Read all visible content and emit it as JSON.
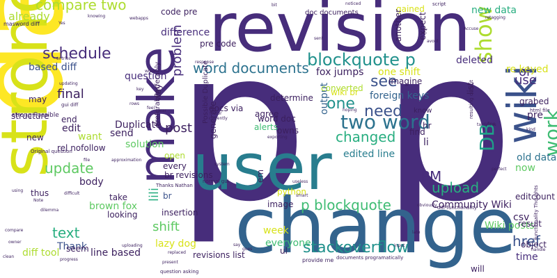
{
  "palette": {
    "background": "#ffffff",
    "purple": "#472d7b",
    "deep_purple": "#3b1f5e",
    "violet": "#5b3c91",
    "indigo": "#3b528b",
    "blue": "#33638d",
    "teal": "#2c728e",
    "teal_blue": "#287d8e",
    "teal_green": "#21918c",
    "green_teal": "#1fa088",
    "sea_green": "#28ae80",
    "green": "#3fbc73",
    "lime_green": "#5ec962",
    "light_green": "#84d44b",
    "yellow_green": "#addc30",
    "yellow": "#d8e219",
    "bright_yellow": "#fde725"
  },
  "words": [
    {
      "text": "p",
      "color": "#472d7b",
      "rot": 0
    },
    {
      "text": "p",
      "color": "#472d7b",
      "rot": 0
    },
    {
      "text": "data",
      "color": "#fde725",
      "rot": -90
    },
    {
      "text": "strong",
      "color": "#d8e219",
      "rot": -90
    },
    {
      "text": "revision",
      "color": "#472d7b",
      "rot": 0
    },
    {
      "text": "change",
      "color": "#33638d",
      "rot": 0
    },
    {
      "text": "user",
      "color": "#287d8e",
      "rot": 0
    },
    {
      "text": "make",
      "color": "#472d7b",
      "rot": -90
    },
    {
      "text": "two word",
      "color": "#2c728e",
      "rot": 0
    },
    {
      "text": "word documents",
      "color": "#2c728e",
      "rot": 0
    },
    {
      "text": "blockquote p",
      "color": "#21918c",
      "rot": 0
    },
    {
      "text": "p blockquote",
      "color": "#3fbc73",
      "rot": 0
    },
    {
      "text": "wiki",
      "color": "#3b528b",
      "rot": -90
    },
    {
      "text": "stackoverflow",
      "color": "#21918c",
      "rot": 0
    },
    {
      "text": "compare two",
      "color": "#addc30",
      "rot": 0
    },
    {
      "text": "schedule",
      "color": "#472d7b",
      "rot": 0
    },
    {
      "text": "upload",
      "color": "#28ae80",
      "rot": 0
    },
    {
      "text": "Community Wiki",
      "color": "#3b1f5e",
      "rot": 0
    },
    {
      "text": "changed",
      "color": "#28ae80",
      "rot": 0
    },
    {
      "text": "PM",
      "color": "#472d7b",
      "rot": 0
    },
    {
      "text": "show",
      "color": "#addc30",
      "rot": -90
    },
    {
      "text": "post",
      "color": "#3b1f5e",
      "rot": 0
    },
    {
      "text": "href",
      "color": "#3b528b",
      "rot": 0
    },
    {
      "text": "update",
      "color": "#5ec962",
      "rot": 0
    },
    {
      "text": "need",
      "color": "#3b528b",
      "rot": 0
    },
    {
      "text": "see",
      "color": "#3b528b",
      "rot": 0
    },
    {
      "text": "one",
      "color": "#21918c",
      "rot": 0
    },
    {
      "text": "shift",
      "color": "#5ec962",
      "rot": 0
    },
    {
      "text": "text",
      "color": "#28ae80",
      "rot": 0
    },
    {
      "text": "final",
      "color": "#3b1f5e",
      "rot": 0
    },
    {
      "text": "use",
      "color": "#472d7b",
      "rot": 0
    },
    {
      "text": "ol",
      "color": "#472d7b",
      "rot": 0
    },
    {
      "text": "DB",
      "color": "#1fa088",
      "rot": -90
    },
    {
      "text": "work",
      "color": "#3fbc73",
      "rot": -90
    },
    {
      "text": "already",
      "color": "#addc30",
      "rot": 0
    },
    {
      "text": "difference",
      "color": "#472d7b",
      "rot": 0
    },
    {
      "text": "fox jumps",
      "color": "#3b1f5e",
      "rot": 0
    },
    {
      "text": "question",
      "color": "#472d7b",
      "rot": 0
    },
    {
      "text": "problem",
      "color": "#472d7b",
      "rot": -90
    },
    {
      "text": "deleted",
      "color": "#472d7b",
      "rot": 0
    },
    {
      "text": "output",
      "color": "#33638d",
      "rot": -90
    },
    {
      "text": "foreign keys",
      "color": "#33638d",
      "rot": 0
    },
    {
      "text": "re keyed",
      "color": "#d8e219",
      "rot": 0
    },
    {
      "text": "new data",
      "color": "#28ae80",
      "rot": 0
    },
    {
      "text": "old data",
      "color": "#2c728e",
      "rot": 0
    },
    {
      "text": "edited line",
      "color": "#287d8e",
      "rot": 0
    },
    {
      "text": "one shift",
      "color": "#d8e219",
      "rot": 0
    },
    {
      "text": "based diff",
      "color": "#3b528b",
      "rot": 0
    },
    {
      "text": "diff tool",
      "color": "#addc30",
      "rot": 0
    },
    {
      "text": "brown fox",
      "color": "#5ec962",
      "rot": 0
    },
    {
      "text": "lazy dog",
      "color": "#d8e219",
      "rot": 0
    },
    {
      "text": "line based",
      "color": "#3b1f5e",
      "rot": 0
    },
    {
      "text": "everyone",
      "color": "#3fbc73",
      "rot": 0
    },
    {
      "text": "Thank",
      "color": "#3b528b",
      "rot": 0
    },
    {
      "text": "time",
      "color": "#472d7b",
      "rot": 0
    },
    {
      "text": "Wiki posts",
      "color": "#5ec962",
      "rot": 0
    },
    {
      "text": "want",
      "color": "#addc30",
      "rot": 0
    },
    {
      "text": "body",
      "color": "#3b1f5e",
      "rot": 0
    },
    {
      "text": "edit",
      "color": "#3b1f5e",
      "rot": 0
    },
    {
      "text": "week",
      "color": "#d8e219",
      "rot": 0
    },
    {
      "text": "now",
      "color": "#5ec962",
      "rot": 0
    },
    {
      "text": "csv",
      "color": "#3b1f5e",
      "rot": 0
    },
    {
      "text": "pre",
      "color": "#3b1f5e",
      "rot": 0
    },
    {
      "text": "list",
      "color": "#3b1f5e",
      "rot": -90
    },
    {
      "text": "li",
      "color": "#3b1f5e",
      "rot": 0
    },
    {
      "text": "hr",
      "color": "#3b1f5e",
      "rot": 0
    },
    {
      "text": "ul",
      "color": "#3b1f5e",
      "rot": 0
    },
    {
      "text": "em",
      "color": "#3b1f5e",
      "rot": -90
    },
    {
      "text": "br",
      "color": "#3b528b",
      "rot": 0
    },
    {
      "text": "lili",
      "color": "#28ae80",
      "rot": -90
    },
    {
      "text": "send",
      "color": "#3b1f5e",
      "rot": 0
    },
    {
      "text": "solution",
      "color": "#5ec962",
      "rot": 0
    },
    {
      "text": "Duplicate",
      "color": "#3b1f5e",
      "rot": 0
    },
    {
      "text": "structure",
      "color": "#3b1f5e",
      "rot": 0
    },
    {
      "text": "rel nofollow",
      "color": "#3b1f5e",
      "rot": 0
    },
    {
      "text": "quick brown",
      "color": "#5ec962",
      "rot": -90
    },
    {
      "text": "Right now",
      "color": "#5ec962",
      "rot": -90
    },
    {
      "text": "thus",
      "color": "#3b1f5e",
      "rot": 0
    },
    {
      "text": "seem",
      "color": "#3b1f5e",
      "rot": 0
    },
    {
      "text": "revisions list",
      "color": "#3b1f5e",
      "rot": 0
    },
    {
      "text": "br revisions",
      "color": "#3b1f5e",
      "rot": 0
    },
    {
      "text": "insertion",
      "color": "#3b1f5e",
      "rot": 0
    },
    {
      "text": "looking",
      "color": "#3b1f5e",
      "rot": 0
    },
    {
      "text": "image",
      "color": "#3b1f5e",
      "rot": 0
    },
    {
      "text": "editcount",
      "color": "#3b1f5e",
      "rot": 0
    },
    {
      "text": "result",
      "color": "#3b1f5e",
      "rot": 0
    },
    {
      "text": "object",
      "color": "#3b1f5e",
      "rot": 0
    },
    {
      "text": "grabed",
      "color": "#3b1f5e",
      "rot": 0
    },
    {
      "text": "determine",
      "color": "#3b1f5e",
      "rot": 0
    },
    {
      "text": "agree",
      "color": "#3b1f5e",
      "rot": 0
    },
    {
      "text": "alerts",
      "color": "#3fbc73",
      "rot": 0
    },
    {
      "text": "owns",
      "color": "#3b1f5e",
      "rot": 0
    },
    {
      "text": "converted",
      "color": "#addc30",
      "rot": 0
    },
    {
      "text": "imagine",
      "color": "#3b1f5e",
      "rot": 0
    },
    {
      "text": "find",
      "color": "#3b1f5e",
      "rot": 0
    },
    {
      "text": "word doc",
      "color": "#3b1f5e",
      "rot": 0
    },
    {
      "text": "wiki br",
      "color": "#d8e219",
      "rot": 0
    },
    {
      "text": "docs via",
      "color": "#3b1f5e",
      "rot": 0
    },
    {
      "text": "pre code",
      "color": "#3b1f5e",
      "rot": 0
    },
    {
      "text": "code pre",
      "color": "#3b1f5e",
      "rot": 0
    },
    {
      "text": "gained",
      "color": "#d8e219",
      "rot": 0
    },
    {
      "text": "another",
      "color": "#3b1f5e",
      "rot": -90
    },
    {
      "text": "expect",
      "color": "#3b1f5e",
      "rot": -90
    },
    {
      "text": "python",
      "color": "#d8e219",
      "rot": 0
    },
    {
      "text": "take",
      "color": "#3b1f5e",
      "rot": 0
    },
    {
      "text": "open",
      "color": "#addc30",
      "rot": 0
    },
    {
      "text": "every",
      "color": "#3b1f5e",
      "rot": 0
    },
    {
      "text": "generate",
      "color": "#3b1f5e",
      "rot": -90
    },
    {
      "text": "Perferably",
      "color": "#3b1f5e",
      "rot": -90
    },
    {
      "text": "Preferably",
      "color": "#3b1f5e",
      "rot": -90
    },
    {
      "text": "Possible Duplicate",
      "color": "#3b1f5e",
      "rot": -90
    },
    {
      "text": "end",
      "color": "#3b1f5e",
      "rot": 0
    },
    {
      "text": "may",
      "color": "#3b1f5e",
      "rot": 0
    },
    {
      "text": "way",
      "color": "#3b1f5e",
      "rot": -90
    },
    {
      "text": "know",
      "color": "#3b1f5e",
      "rot": 0
    },
    {
      "text": "will",
      "color": "#3b1f5e",
      "rot": 0
    },
    {
      "text": "new",
      "color": "#3b1f5e",
      "rot": 0
    },
    {
      "text": "c",
      "color": "#3b1f5e",
      "rot": 0
    },
    {
      "text": "doc documents",
      "color": "#3b1f5e",
      "rot": 0
    },
    {
      "text": "masword diff",
      "color": "#3b1f5e",
      "rot": 0
    },
    {
      "text": "gui diff",
      "color": "#3b1f5e",
      "rot": 0
    },
    {
      "text": "strong Possible",
      "color": "#3b1f5e",
      "rot": 0
    },
    {
      "text": "Thanks Nathan",
      "color": "#3b1f5e",
      "rot": 0
    },
    {
      "text": "Original question",
      "color": "#3b1f5e",
      "rot": 0
    },
    {
      "text": "question asking",
      "color": "#3b1f5e",
      "rot": 0
    },
    {
      "text": "documents programatically",
      "color": "#3b1f5e",
      "rot": 0
    },
    {
      "text": "provide me",
      "color": "#3b1f5e",
      "rot": 0
    },
    {
      "text": "diff functionality",
      "color": "#3b1f5e",
      "rot": 0
    },
    {
      "text": "functionality Thoughts",
      "color": "#3b1f5e",
      "rot": -90
    },
    {
      "text": "html file",
      "color": "#3b1f5e",
      "rot": 0
    },
    {
      "text": "resulting output",
      "color": "#3b1f5e",
      "rot": -90
    },
    {
      "text": "normal gui",
      "color": "#3b1f5e",
      "rot": 0
    },
    {
      "text": "retagging",
      "color": "#3b1f5e",
      "rot": 0
    },
    {
      "text": "script",
      "color": "#3b1f5e",
      "rot": 0
    },
    {
      "text": "knowing",
      "color": "#3b1f5e",
      "rot": 0
    },
    {
      "text": "noticed",
      "color": "#3b1f5e",
      "rot": 0
    },
    {
      "text": "avoid",
      "color": "#3b1f5e",
      "rot": 0
    },
    {
      "text": "Accuse",
      "color": "#3b1f5e",
      "rot": 0
    },
    {
      "text": "Yes",
      "color": "#3b1f5e",
      "rot": 0
    },
    {
      "text": "entries",
      "color": "#3b1f5e",
      "rot": 0
    },
    {
      "text": "updating",
      "color": "#3b1f5e",
      "rot": 0
    },
    {
      "text": "key",
      "color": "#3b1f5e",
      "rot": 0
    },
    {
      "text": "rows",
      "color": "#3b1f5e",
      "rot": 0
    },
    {
      "text": "wipe",
      "color": "#3b1f5e",
      "rot": 0
    },
    {
      "text": "factor",
      "color": "#3b1f5e",
      "rot": 0
    },
    {
      "text": "currently",
      "color": "#3b1f5e",
      "rot": 0
    },
    {
      "text": "approximation",
      "color": "#3b1f5e",
      "rot": 0
    },
    {
      "text": "exporting",
      "color": "#3b1f5e",
      "rot": 0
    },
    {
      "text": "useless",
      "color": "#3b1f5e",
      "rot": 0
    },
    {
      "text": "system",
      "color": "#3b1f5e",
      "rot": 0
    },
    {
      "text": "smart",
      "color": "#3b1f5e",
      "rot": 0
    },
    {
      "text": "uploading",
      "color": "#3b1f5e",
      "rot": 0
    },
    {
      "text": "replaced",
      "color": "#3b1f5e",
      "rot": 0
    },
    {
      "text": "present",
      "color": "#3b1f5e",
      "rot": 0
    },
    {
      "text": "goes",
      "color": "#3b1f5e",
      "rot": 0
    },
    {
      "text": "Note",
      "color": "#3b1f5e",
      "rot": 0
    },
    {
      "text": "dilemma",
      "color": "#3b1f5e",
      "rot": 0
    },
    {
      "text": "difficult",
      "color": "#3b1f5e",
      "rot": 0
    },
    {
      "text": "using",
      "color": "#3b1f5e",
      "rot": 0
    },
    {
      "text": "owner",
      "color": "#3b1f5e",
      "rot": 0
    },
    {
      "text": "compare",
      "color": "#3b1f5e",
      "rot": 0
    },
    {
      "text": "clean",
      "color": "#3b1f5e",
      "rot": 0
    },
    {
      "text": "progress",
      "color": "#3b1f5e",
      "rot": 0
    },
    {
      "text": "tardiness",
      "color": "#3b1f5e",
      "rot": 0
    },
    {
      "text": "perfect",
      "color": "#3b1f5e",
      "rot": 0
    },
    {
      "text": "obviously",
      "color": "#3b1f5e",
      "rot": 0
    },
    {
      "text": "input",
      "color": "#3b1f5e",
      "rot": 0
    },
    {
      "text": "handle",
      "color": "#3b1f5e",
      "rot": 0
    },
    {
      "text": "say",
      "color": "#3b1f5e",
      "rot": 0
    },
    {
      "text": "hoping",
      "color": "#3b1f5e",
      "rot": 0
    },
    {
      "text": "feel",
      "color": "#3b1f5e",
      "rot": 0
    },
    {
      "text": "fear",
      "color": "#3b1f5e",
      "rot": 0
    },
    {
      "text": "file",
      "color": "#3b1f5e",
      "rot": 0
    },
    {
      "text": "late",
      "color": "#3b1f5e",
      "rot": 0
    },
    {
      "text": "kind",
      "color": "#3b1f5e",
      "rot": 0
    },
    {
      "text": "fine",
      "color": "#3b1f5e",
      "rot": 0
    },
    {
      "text": "response",
      "color": "#3b1f5e",
      "rot": 0
    },
    {
      "text": "webapps",
      "color": "#3b1f5e",
      "rot": 0
    },
    {
      "text": "sent",
      "color": "#3b1f5e",
      "rot": 0
    },
    {
      "text": "bit",
      "color": "#3b1f5e",
      "rot": 0
    }
  ]
}
